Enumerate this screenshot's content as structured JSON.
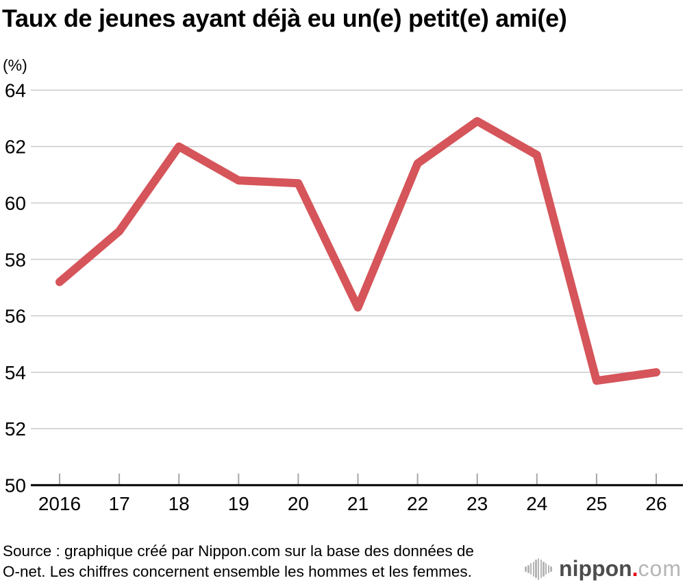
{
  "page": {
    "title": "Taux de jeunes ayant déjà eu un(e) petit(e) ami(e)",
    "unit_label": "(%)",
    "source_line1": "Source : graphique créé par Nippon.com sur la base des données de",
    "source_line2": "O-net. Les chiffres concernent ensemble les hommes et les femmes.",
    "logo": {
      "icon": "soundwave-icon",
      "name": "nippon",
      "dot": ".",
      "tld": "com"
    }
  },
  "colors": {
    "line": "#d5555a",
    "grid": "#cecece",
    "axis": "#111111",
    "tick": "#a6a6a6",
    "text": "#000000",
    "logo_text": "#4d4d4d",
    "logo_light": "#b5b5b5",
    "logo_dot": "#e60012"
  },
  "chart_data": {
    "type": "line",
    "title": "Taux de jeunes ayant déjà eu un(e) petit(e) ami(e)",
    "xlabel": "",
    "ylabel": "(%)",
    "categories": [
      "2016",
      "17",
      "18",
      "19",
      "20",
      "21",
      "22",
      "23",
      "24",
      "25",
      "26"
    ],
    "values": [
      57.2,
      59.0,
      62.0,
      60.8,
      60.7,
      56.3,
      61.4,
      62.9,
      61.7,
      53.7,
      54.0
    ],
    "series": [
      {
        "name": "Taux de jeunes ayant déjà eu un(e) petit(e) ami(e)",
        "values": [
          57.2,
          59.0,
          62.0,
          60.8,
          60.7,
          56.3,
          61.4,
          62.9,
          61.7,
          53.7,
          54.0
        ]
      }
    ],
    "ylim": [
      50,
      64
    ],
    "yticks": [
      50,
      52,
      54,
      56,
      58,
      60,
      62,
      64
    ],
    "grid": true,
    "legend": false,
    "line_color": "#d5555a"
  }
}
